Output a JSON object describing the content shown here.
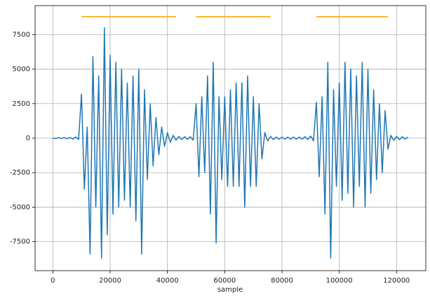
{
  "chart_data": {
    "type": "line",
    "xlabel": "sample",
    "xlim": [
      -6200,
      130200
    ],
    "ylim": [
      -9600,
      9600
    ],
    "xticks": [
      0,
      20000,
      40000,
      60000,
      80000,
      100000,
      120000
    ],
    "yticks": [
      -7500,
      -5000,
      -2500,
      0,
      2500,
      5000,
      7500
    ],
    "grid": true,
    "series": [
      {
        "color": "#1f77b4",
        "x": [
          0,
          1000,
          2000,
          3000,
          4000,
          5000,
          6000,
          7000,
          8000,
          9000,
          10000,
          11000,
          12000,
          13000,
          14000,
          15000,
          16000,
          17000,
          18000,
          19000,
          20000,
          21000,
          22000,
          23000,
          24000,
          25000,
          26000,
          27000,
          28000,
          29000,
          30000,
          31000,
          32000,
          33000,
          34000,
          35000,
          36000,
          37000,
          38000,
          39000,
          40000,
          41000,
          42000,
          43000,
          44000,
          45000,
          46000,
          47000,
          48000,
          49000,
          50000,
          51000,
          52000,
          53000,
          54000,
          55000,
          56000,
          57000,
          58000,
          59000,
          60000,
          61000,
          62000,
          63000,
          64000,
          65000,
          66000,
          67000,
          68000,
          69000,
          70000,
          71000,
          72000,
          73000,
          74000,
          75000,
          76000,
          77000,
          78000,
          79000,
          80000,
          81000,
          82000,
          83000,
          84000,
          85000,
          86000,
          87000,
          88000,
          89000,
          90000,
          91000,
          92000,
          93000,
          94000,
          95000,
          96000,
          97000,
          98000,
          99000,
          100000,
          101000,
          102000,
          103000,
          104000,
          105000,
          106000,
          107000,
          108000,
          109000,
          110000,
          111000,
          112000,
          113000,
          114000,
          115000,
          116000,
          117000,
          118000,
          119000,
          120000,
          121000,
          122000,
          123000,
          124000
        ],
        "values": [
          0,
          -30,
          40,
          -30,
          40,
          -40,
          50,
          -60,
          80,
          -100,
          3200,
          -3700,
          800,
          -8400,
          5900,
          -5000,
          4500,
          -8700,
          8000,
          -7000,
          6000,
          -5500,
          5500,
          -5000,
          5000,
          -4500,
          4000,
          -5000,
          4500,
          -6000,
          5000,
          -8400,
          3500,
          -3000,
          2500,
          -2000,
          1500,
          -1200,
          800,
          -600,
          400,
          -300,
          200,
          -150,
          120,
          -100,
          100,
          -80,
          100,
          -150,
          2500,
          -2800,
          3000,
          -2500,
          4500,
          -5500,
          5500,
          -7600,
          3000,
          -3000,
          3000,
          -3500,
          3500,
          -3500,
          4000,
          -3500,
          4000,
          -5000,
          4500,
          -3500,
          3000,
          -3500,
          2500,
          -1500,
          400,
          -200,
          120,
          -100,
          80,
          -80,
          80,
          -80,
          80,
          -80,
          80,
          -80,
          80,
          -80,
          100,
          -100,
          150,
          -200,
          2600,
          -2800,
          3000,
          -5500,
          5500,
          -8700,
          3500,
          -3500,
          4000,
          -4500,
          5500,
          -4000,
          5000,
          -5000,
          4500,
          -3500,
          5500,
          -5000,
          5000,
          -4000,
          3500,
          -3000,
          2500,
          -2500,
          2000,
          -800,
          200,
          -150,
          120,
          -100,
          100,
          -80,
          80
        ]
      },
      {
        "color": "#ffa500",
        "x": [
          10000,
          43000,
          null,
          50000,
          76000,
          null,
          92000,
          117000
        ],
        "values": [
          8800,
          8800,
          null,
          8800,
          8800,
          null,
          8800,
          8800
        ]
      }
    ]
  }
}
